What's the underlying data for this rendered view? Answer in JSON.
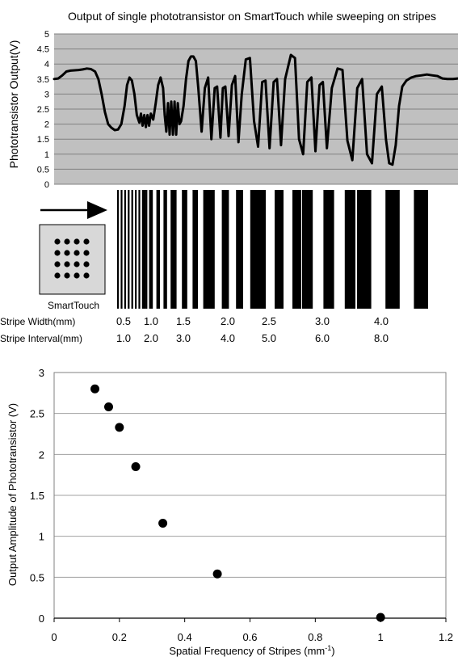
{
  "chart_data": [
    {
      "type": "line",
      "title": "Output of single phototransistor on SmartTouch while sweeping on stripes",
      "ylabel": "Phototransistor Output(V)",
      "ylim": [
        0,
        5
      ],
      "yticks": [
        "0",
        "0.5",
        "1",
        "1.5",
        "2",
        "2.5",
        "3",
        "3.5",
        "4",
        "4.5",
        "5"
      ],
      "grid": true,
      "background": "#c0c0c0",
      "line_color": "#000000",
      "series": [
        {
          "values": [
            [
              0,
              3.5
            ],
            [
              5,
              3.52
            ],
            [
              10,
              3.62
            ],
            [
              15,
              3.75
            ],
            [
              20,
              3.78
            ],
            [
              25,
              3.79
            ],
            [
              30,
              3.8
            ],
            [
              35,
              3.82
            ],
            [
              40,
              3.85
            ],
            [
              45,
              3.83
            ],
            [
              50,
              3.75
            ],
            [
              54,
              3.5
            ],
            [
              58,
              3.0
            ],
            [
              62,
              2.4
            ],
            [
              66,
              2.0
            ],
            [
              70,
              1.88
            ],
            [
              74,
              1.8
            ],
            [
              78,
              1.82
            ],
            [
              82,
              2.0
            ],
            [
              86,
              2.6
            ],
            [
              89,
              3.3
            ],
            [
              92,
              3.55
            ],
            [
              95,
              3.45
            ],
            [
              98,
              3.0
            ],
            [
              101,
              2.3
            ],
            [
              104,
              2.05
            ],
            [
              106,
              2.35
            ],
            [
              108,
              1.95
            ],
            [
              110,
              2.3
            ],
            [
              112,
              1.9
            ],
            [
              114,
              2.3
            ],
            [
              116,
              1.95
            ],
            [
              118,
              2.35
            ],
            [
              121,
              2.15
            ],
            [
              124,
              2.7
            ],
            [
              127,
              3.3
            ],
            [
              130,
              3.55
            ],
            [
              133,
              3.2
            ],
            [
              135,
              2.3
            ],
            [
              137,
              1.75
            ],
            [
              139,
              2.7
            ],
            [
              141,
              1.65
            ],
            [
              143,
              2.75
            ],
            [
              145,
              1.65
            ],
            [
              147,
              2.75
            ],
            [
              149,
              1.65
            ],
            [
              151,
              2.7
            ],
            [
              153,
              2.0
            ],
            [
              155,
              2.1
            ],
            [
              158,
              2.6
            ],
            [
              161,
              3.5
            ],
            [
              164,
              4.1
            ],
            [
              167,
              4.25
            ],
            [
              170,
              4.25
            ],
            [
              173,
              4.1
            ],
            [
              176,
              3.2
            ],
            [
              180,
              1.75
            ],
            [
              184,
              3.2
            ],
            [
              188,
              3.55
            ],
            [
              192,
              1.5
            ],
            [
              196,
              3.2
            ],
            [
              199,
              3.25
            ],
            [
              203,
              1.55
            ],
            [
              206,
              3.2
            ],
            [
              209,
              3.25
            ],
            [
              213,
              1.6
            ],
            [
              217,
              3.3
            ],
            [
              221,
              3.6
            ],
            [
              225,
              1.4
            ],
            [
              229,
              3.0
            ],
            [
              234,
              4.15
            ],
            [
              239,
              4.2
            ],
            [
              244,
              2.1
            ],
            [
              249,
              1.25
            ],
            [
              254,
              3.4
            ],
            [
              258,
              3.45
            ],
            [
              263,
              1.2
            ],
            [
              268,
              3.4
            ],
            [
              272,
              3.5
            ],
            [
              277,
              1.3
            ],
            [
              282,
              3.5
            ],
            [
              289,
              4.3
            ],
            [
              294,
              4.2
            ],
            [
              299,
              1.5
            ],
            [
              304,
              1.0
            ],
            [
              309,
              3.4
            ],
            [
              314,
              3.55
            ],
            [
              319,
              1.1
            ],
            [
              324,
              3.3
            ],
            [
              328,
              3.4
            ],
            [
              333,
              1.2
            ],
            [
              339,
              3.2
            ],
            [
              346,
              3.85
            ],
            [
              352,
              3.8
            ],
            [
              358,
              1.45
            ],
            [
              364,
              0.8
            ],
            [
              370,
              3.2
            ],
            [
              376,
              3.5
            ],
            [
              382,
              1.0
            ],
            [
              388,
              0.7
            ],
            [
              394,
              3.0
            ],
            [
              400,
              3.25
            ],
            [
              405,
              1.5
            ],
            [
              409,
              0.7
            ],
            [
              413,
              0.65
            ],
            [
              417,
              1.3
            ],
            [
              421,
              2.6
            ],
            [
              425,
              3.25
            ],
            [
              430,
              3.45
            ],
            [
              436,
              3.55
            ],
            [
              442,
              3.6
            ],
            [
              448,
              3.62
            ],
            [
              455,
              3.65
            ],
            [
              462,
              3.62
            ],
            [
              468,
              3.6
            ],
            [
              474,
              3.52
            ],
            [
              480,
              3.5
            ],
            [
              487,
              3.5
            ],
            [
              493,
              3.52
            ]
          ]
        }
      ]
    },
    {
      "type": "table",
      "device_label": "SmartTouch",
      "row_labels": [
        "Stripe Width(mm)",
        "Stripe Interval(mm)"
      ],
      "widths": [
        "0.5",
        "1.0",
        "1.5",
        "2.0",
        "2.5",
        "3.0",
        "4.0"
      ],
      "intervals": [
        "1.0",
        "2.0",
        "3.0",
        "4.0",
        "5.0",
        "6.0",
        "8.0"
      ]
    },
    {
      "type": "scatter",
      "xlabel": "Spatial Frequency of Stripes (mm",
      "xlabel_sup": "-1",
      "xlabel_tail": ")",
      "ylabel": "Output Amplitude of Phototransistor (V)",
      "xlim": [
        0,
        1.2
      ],
      "ylim": [
        0,
        3
      ],
      "xticks": [
        "0",
        "0.2",
        "0.4",
        "0.6",
        "0.8",
        "1",
        "1.2"
      ],
      "yticks": [
        "0",
        "0.5",
        "1",
        "1.5",
        "2",
        "2.5",
        "3"
      ],
      "grid": true,
      "marker_color": "#000000",
      "points": [
        {
          "x": 0.125,
          "y": 2.8
        },
        {
          "x": 0.167,
          "y": 2.58
        },
        {
          "x": 0.2,
          "y": 2.33
        },
        {
          "x": 0.25,
          "y": 1.85
        },
        {
          "x": 0.333,
          "y": 1.16
        },
        {
          "x": 0.5,
          "y": 0.54
        },
        {
          "x": 1.0,
          "y": 0.01
        }
      ]
    }
  ]
}
